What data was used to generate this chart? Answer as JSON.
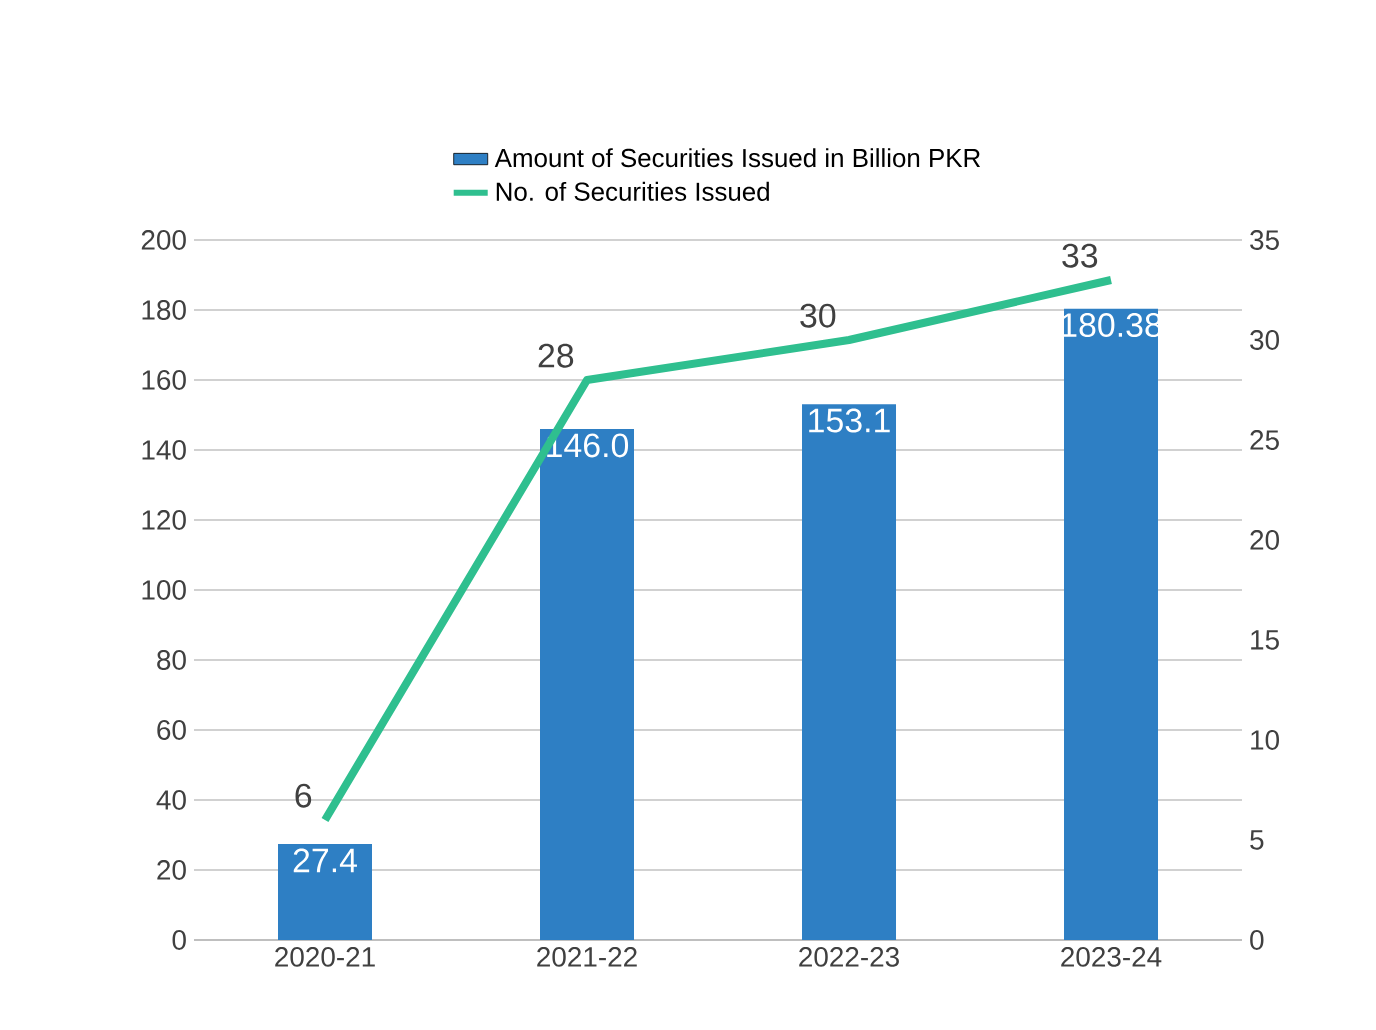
{
  "chart_data": {
    "type": "bar",
    "categories": [
      "2020-21",
      "2021-22",
      "2022-23",
      "2023-24"
    ],
    "series": [
      {
        "name": "Amount of Securities Issued in Billion PKR",
        "color": "#2e7fc4",
        "values": [
          27.4,
          146.0,
          153.1,
          180.38
        ],
        "value_labels": [
          "27.4",
          "146.0",
          "153.1",
          "180.38"
        ]
      },
      {
        "name": "No. of Securities Issued",
        "type": "line",
        "axis": "y2",
        "color": "#2fbf8f",
        "values": [
          6,
          28,
          30,
          33
        ],
        "value_labels": [
          "6",
          "28",
          "30",
          "33"
        ]
      }
    ],
    "ylim": [
      0,
      200
    ],
    "yticks": [
      0,
      20,
      40,
      60,
      80,
      100,
      120,
      140,
      160,
      180,
      200
    ],
    "y2lim": [
      0,
      35
    ],
    "y2ticks": [
      0,
      5,
      10,
      15,
      20,
      25,
      30,
      35
    ],
    "grid": "y",
    "legend": "top",
    "marker": "none",
    "line_style": "solid"
  }
}
